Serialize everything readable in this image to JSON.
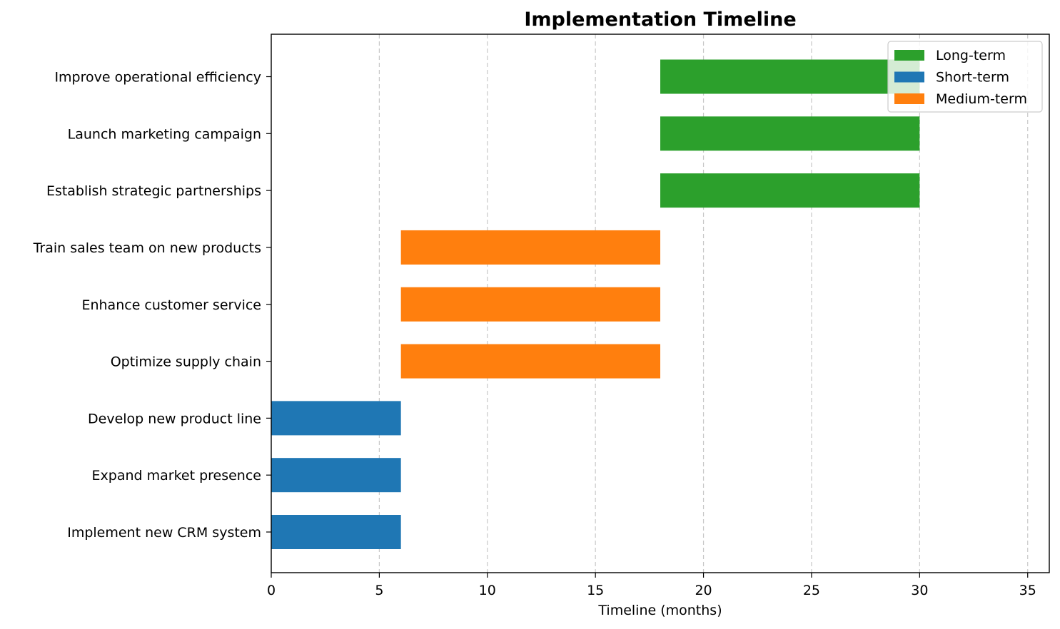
{
  "chart_data": {
    "type": "bar",
    "orientation": "horizontal",
    "title": "Implementation Timeline",
    "xlabel": "Timeline (months)",
    "ylabel": "",
    "xlim": [
      0,
      36
    ],
    "xticks": [
      0,
      5,
      10,
      15,
      20,
      25,
      30,
      35
    ],
    "grid": "vertical dashed",
    "legend_position": "top-right",
    "tasks": [
      {
        "name": "Implement new CRM system",
        "start": 0,
        "end": 6,
        "term": "Short-term"
      },
      {
        "name": "Expand market presence",
        "start": 0,
        "end": 6,
        "term": "Short-term"
      },
      {
        "name": "Develop new product line",
        "start": 0,
        "end": 6,
        "term": "Short-term"
      },
      {
        "name": "Optimize supply chain",
        "start": 6,
        "end": 18,
        "term": "Medium-term"
      },
      {
        "name": "Enhance customer service",
        "start": 6,
        "end": 18,
        "term": "Medium-term"
      },
      {
        "name": "Train sales team on new products",
        "start": 6,
        "end": 18,
        "term": "Medium-term"
      },
      {
        "name": "Establish strategic partnerships",
        "start": 18,
        "end": 30,
        "term": "Long-term"
      },
      {
        "name": "Launch marketing campaign",
        "start": 18,
        "end": 30,
        "term": "Long-term"
      },
      {
        "name": "Improve operational efficiency",
        "start": 18,
        "end": 30,
        "term": "Long-term"
      }
    ],
    "legend": [
      {
        "name": "Long-term",
        "color": "#2ca02c"
      },
      {
        "name": "Short-term",
        "color": "#1f77b4"
      },
      {
        "name": "Medium-term",
        "color": "#ff7f0e"
      }
    ]
  }
}
